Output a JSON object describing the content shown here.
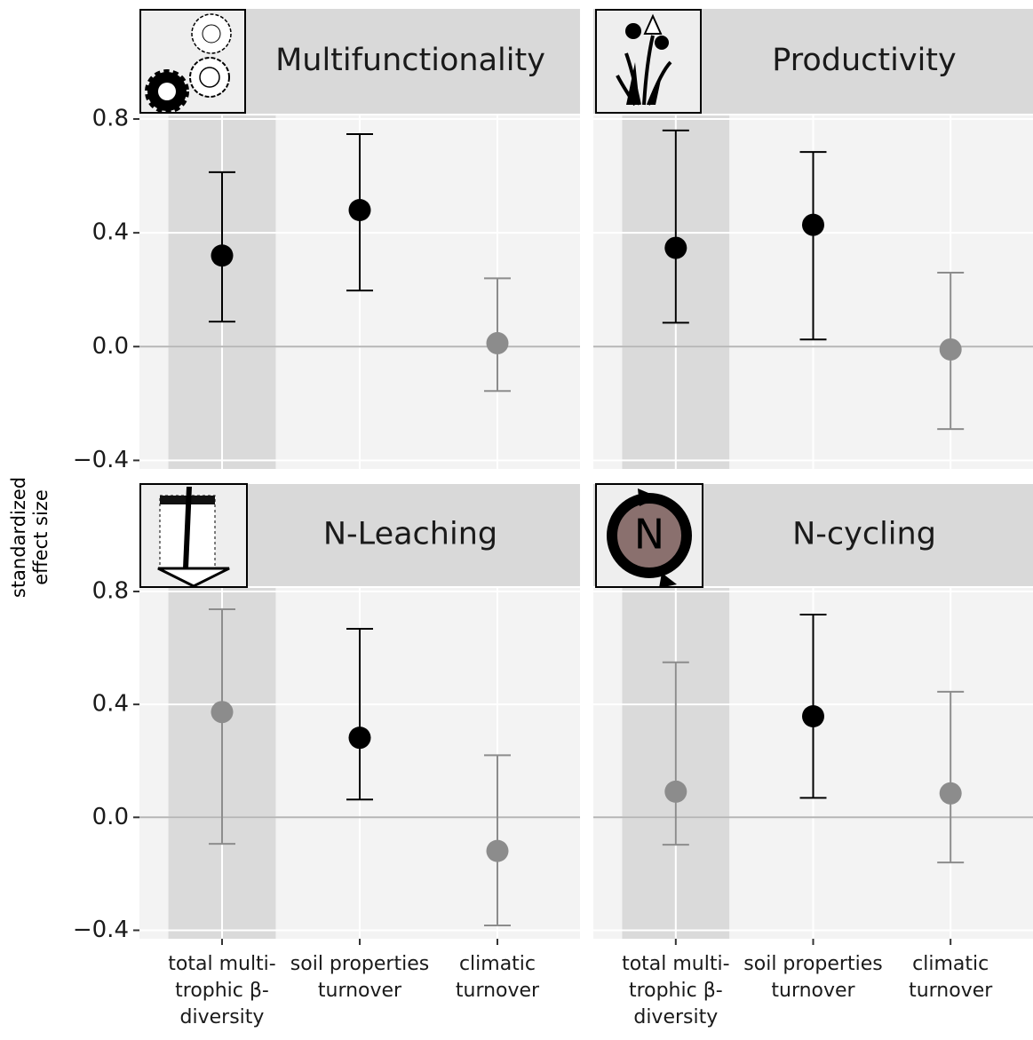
{
  "y_label": [
    "standardized",
    "effect size"
  ],
  "icon_text": "N",
  "chart_data": [
    {
      "type": "errorbar",
      "title": "Multifunctionality",
      "categories": [
        "total multi-trophic β-diversity",
        "soil properties turnover",
        "climatic turnover"
      ],
      "values": [
        0.32,
        0.48,
        0.012
      ],
      "lower": [
        0.088,
        0.197,
        -0.156
      ],
      "upper": [
        0.613,
        0.747,
        0.24
      ],
      "colors": [
        "#000000",
        "#000000",
        "#8c8c8c"
      ],
      "ylim": [
        -0.43,
        0.8125
      ],
      "yticks": [
        {
          "value": -0.4,
          "label": "−0.4"
        },
        {
          "value": 0,
          "label": "0.0"
        },
        0.4,
        0.8
      ],
      "grid": true,
      "hline": 0,
      "highlight_index": 0
    },
    {
      "type": "errorbar",
      "title": "Productivity",
      "categories": [
        "total multi-trophic β-diversity",
        "soil properties turnover",
        "climatic turnover"
      ],
      "values": [
        0.347,
        0.428,
        -0.01
      ],
      "lower": [
        0.084,
        0.025,
        -0.29
      ],
      "upper": [
        0.76,
        0.684,
        0.26
      ],
      "colors": [
        "#000000",
        "#000000",
        "#8c8c8c"
      ],
      "ylim": [
        -0.43,
        0.8125
      ],
      "yticks": [
        {
          "value": -0.4,
          "label": "−0.4"
        },
        {
          "value": 0,
          "label": "0.0"
        },
        0.4,
        0.8
      ],
      "grid": true,
      "hline": 0,
      "highlight_index": 0
    },
    {
      "type": "errorbar",
      "title": "N-Leaching",
      "categories": [
        "total multi-trophic β-diversity",
        "soil properties turnover",
        "climatic turnover"
      ],
      "values": [
        0.373,
        0.282,
        -0.119
      ],
      "lower": [
        -0.094,
        0.063,
        -0.383
      ],
      "upper": [
        0.737,
        0.668,
        0.22
      ],
      "colors": [
        "#8c8c8c",
        "#000000",
        "#8c8c8c"
      ],
      "ylim": [
        -0.43,
        0.8125
      ],
      "yticks": [
        {
          "value": -0.4,
          "label": "−0.4"
        },
        {
          "value": 0,
          "label": "0.0"
        },
        0.4,
        0.8
      ],
      "grid": true,
      "hline": 0,
      "highlight_index": 0
    },
    {
      "type": "errorbar",
      "title": "N-cycling",
      "categories": [
        "total multi-trophic β-diversity",
        "soil properties turnover",
        "climatic turnover"
      ],
      "values": [
        0.091,
        0.358,
        0.085
      ],
      "lower": [
        -0.097,
        0.069,
        -0.16
      ],
      "upper": [
        0.549,
        0.718,
        0.445
      ],
      "colors": [
        "#8c8c8c",
        "#000000",
        "#8c8c8c"
      ],
      "ylim": [
        -0.43,
        0.8125
      ],
      "yticks": [
        {
          "value": -0.4,
          "label": "−0.4"
        },
        {
          "value": 0,
          "label": "0.0"
        },
        0.4,
        0.8
      ],
      "grid": true,
      "hline": 0,
      "highlight_index": 0
    }
  ]
}
